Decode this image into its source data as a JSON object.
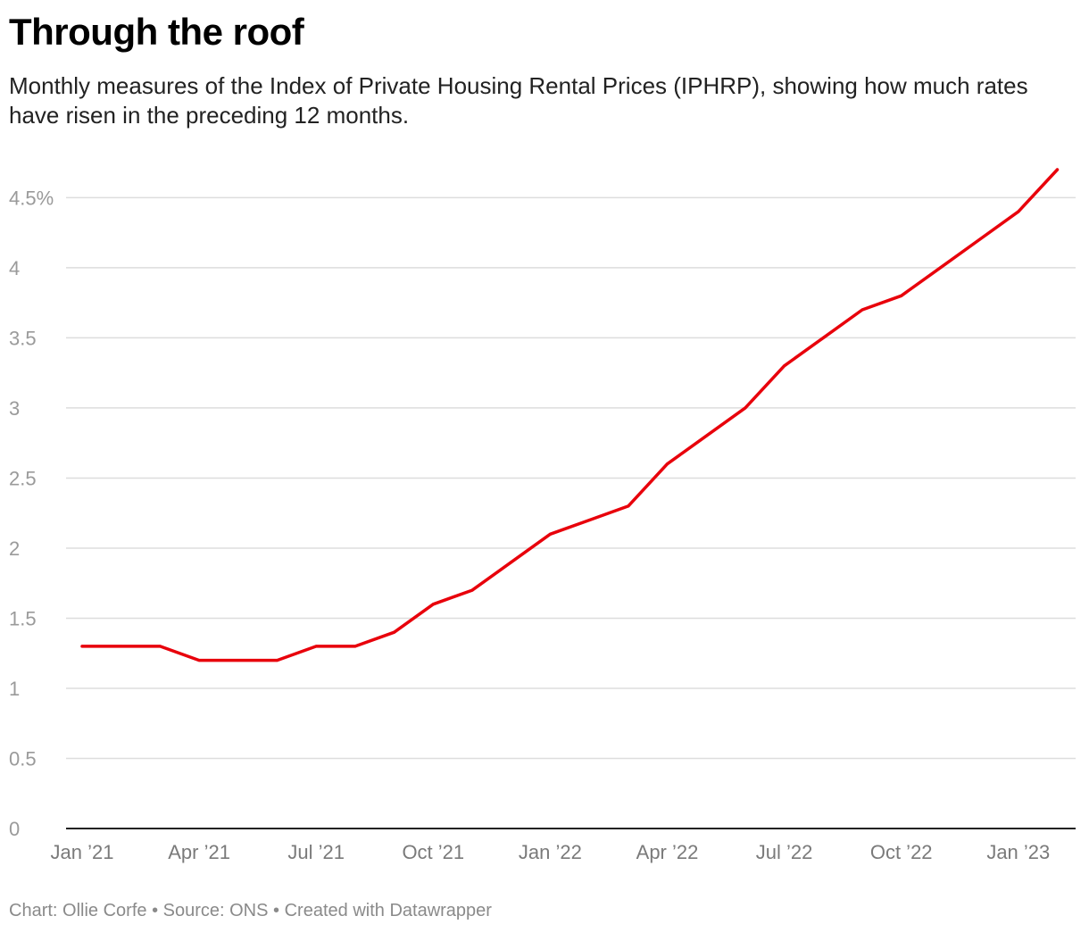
{
  "title": "Through the roof",
  "subtitle": "Monthly measures of the Index of Private Housing Rental Prices (IPHRP), showing how much rates have risen in the preceding 12 months.",
  "footer": {
    "chart_credit": "Chart: Ollie Corfe",
    "separator": "•",
    "source": "Source: ONS",
    "created_with": "Created with Datawrapper"
  },
  "colors": {
    "line": "#e8000b",
    "grid": "#dddddd",
    "axis": "#222222"
  },
  "chart_data": {
    "type": "line",
    "title": "Through the roof",
    "xlabel": "",
    "ylabel": "",
    "ylim": [
      0,
      4.7
    ],
    "grid": true,
    "legend": "none",
    "y_ticks": [
      {
        "value": 0,
        "label": "0"
      },
      {
        "value": 0.5,
        "label": "0.5"
      },
      {
        "value": 1,
        "label": "1"
      },
      {
        "value": 1.5,
        "label": "1.5"
      },
      {
        "value": 2,
        "label": "2"
      },
      {
        "value": 2.5,
        "label": "2.5"
      },
      {
        "value": 3,
        "label": "3"
      },
      {
        "value": 3.5,
        "label": "3.5"
      },
      {
        "value": 4,
        "label": "4"
      },
      {
        "value": 4.5,
        "label": "4.5%"
      }
    ],
    "x_ticks": [
      {
        "value": "2021-01",
        "label": "Jan ’21"
      },
      {
        "value": "2021-04",
        "label": "Apr ’21"
      },
      {
        "value": "2021-07",
        "label": "Jul ’21"
      },
      {
        "value": "2021-10",
        "label": "Oct ’21"
      },
      {
        "value": "2022-01",
        "label": "Jan ’22"
      },
      {
        "value": "2022-04",
        "label": "Apr ’22"
      },
      {
        "value": "2022-07",
        "label": "Jul ’22"
      },
      {
        "value": "2022-10",
        "label": "Oct ’22"
      },
      {
        "value": "2023-01",
        "label": "Jan ’23"
      }
    ],
    "series": [
      {
        "points": [
          {
            "x": "2021-01",
            "y": 1.3
          },
          {
            "x": "2021-02",
            "y": 1.3
          },
          {
            "x": "2021-03",
            "y": 1.3
          },
          {
            "x": "2021-04",
            "y": 1.2
          },
          {
            "x": "2021-05",
            "y": 1.2
          },
          {
            "x": "2021-06",
            "y": 1.2
          },
          {
            "x": "2021-07",
            "y": 1.3
          },
          {
            "x": "2021-08",
            "y": 1.3
          },
          {
            "x": "2021-09",
            "y": 1.4
          },
          {
            "x": "2021-10",
            "y": 1.6
          },
          {
            "x": "2021-11",
            "y": 1.7
          },
          {
            "x": "2021-12",
            "y": 1.9
          },
          {
            "x": "2022-01",
            "y": 2.1
          },
          {
            "x": "2022-02",
            "y": 2.2
          },
          {
            "x": "2022-03",
            "y": 2.3
          },
          {
            "x": "2022-04",
            "y": 2.6
          },
          {
            "x": "2022-05",
            "y": 2.8
          },
          {
            "x": "2022-06",
            "y": 3.0
          },
          {
            "x": "2022-07",
            "y": 3.3
          },
          {
            "x": "2022-08",
            "y": 3.5
          },
          {
            "x": "2022-09",
            "y": 3.7
          },
          {
            "x": "2022-10",
            "y": 3.8
          },
          {
            "x": "2022-11",
            "y": 4.0
          },
          {
            "x": "2022-12",
            "y": 4.2
          },
          {
            "x": "2023-01",
            "y": 4.4
          },
          {
            "x": "2023-02",
            "y": 4.7
          }
        ]
      }
    ]
  }
}
